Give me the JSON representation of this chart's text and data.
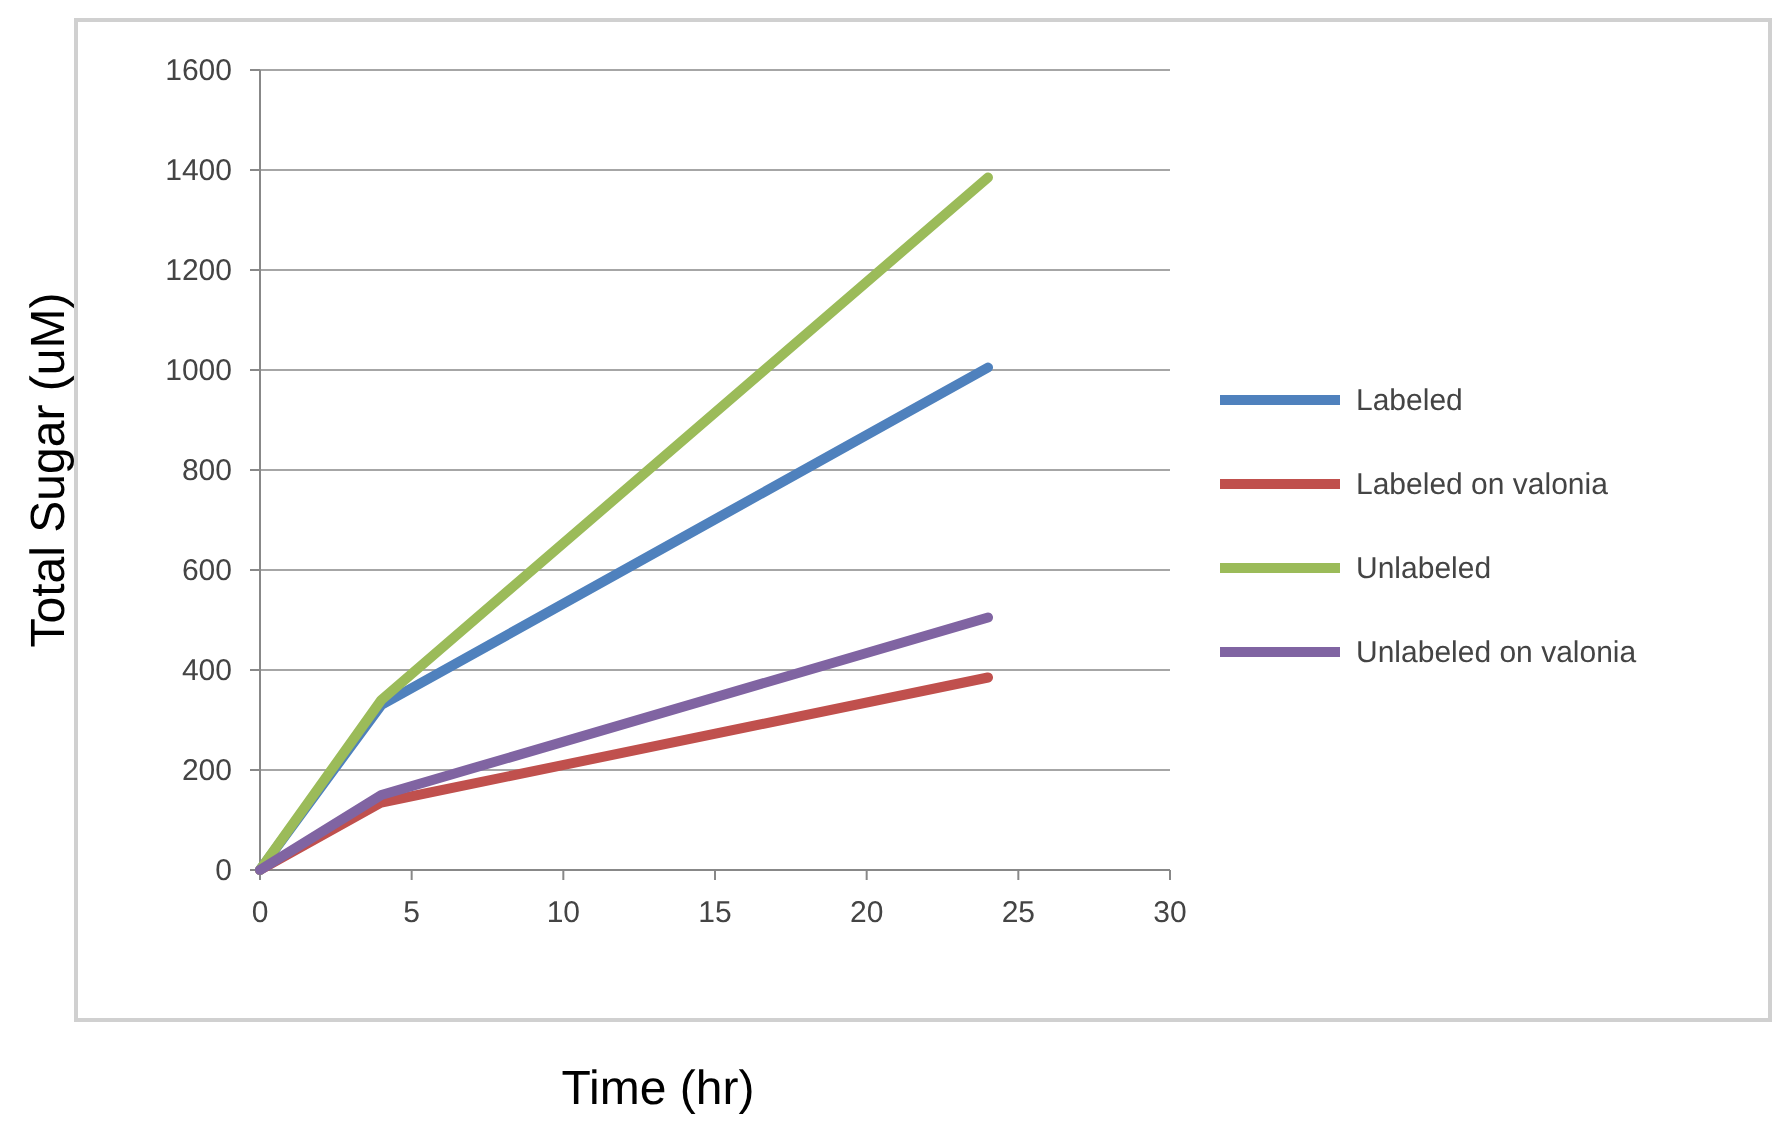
{
  "chart_data": {
    "type": "line",
    "xlabel": "Time (hr)",
    "ylabel": "Total Sugar (uM)",
    "x": [
      0,
      4,
      24
    ],
    "series": [
      {
        "name": "Labeled",
        "color": "#4f81bd",
        "values": [
          0,
          330,
          1005
        ]
      },
      {
        "name": "Labeled on valonia",
        "color": "#c0504d",
        "values": [
          0,
          135,
          385
        ]
      },
      {
        "name": "Unlabeled",
        "color": "#9bbb59",
        "values": [
          0,
          340,
          1385
        ]
      },
      {
        "name": "Unlabeled on valonia",
        "color": "#8064a2",
        "values": [
          0,
          150,
          505
        ]
      }
    ],
    "xlim": [
      0,
      30
    ],
    "xticks": [
      0,
      5,
      10,
      15,
      20,
      25,
      30
    ],
    "ylim": [
      0,
      1600
    ],
    "yticks": [
      0,
      200,
      400,
      600,
      800,
      1000,
      1200,
      1400,
      1600
    ],
    "grid": "y",
    "legend": "right",
    "marker": "none",
    "line_style": "solid"
  }
}
